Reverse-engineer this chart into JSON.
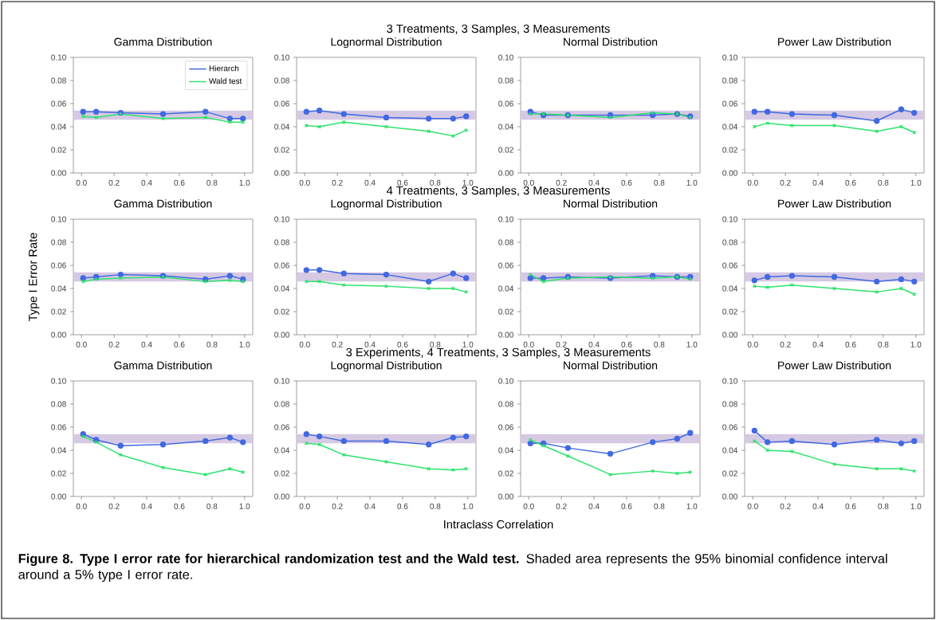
{
  "chart_data": [
    {
      "type": "other",
      "title": "3 Treatments, 3 Samples, 3 Measurements"
    },
    {
      "type": "line",
      "title": "Gamma Distribution",
      "legend": "top right",
      "x": [
        0.01,
        0.09,
        0.24,
        0.5,
        0.76,
        0.91,
        0.99
      ],
      "xlim": [
        -0.05,
        1.05
      ],
      "ylim": [
        0,
        0.1
      ],
      "xticks": [
        {
          "value": 0,
          "label": "0.0"
        },
        {
          "value": 0.2,
          "label": "0.2"
        },
        {
          "value": 0.4,
          "label": "0.4"
        },
        {
          "value": 0.6,
          "label": "0.6"
        },
        {
          "value": 0.8,
          "label": "0.8"
        },
        {
          "value": 1,
          "label": "1.0"
        }
      ],
      "yticks": [
        {
          "value": 0,
          "label": "0.00"
        },
        {
          "value": 0.02,
          "label": "0.02"
        },
        {
          "value": 0.04,
          "label": "0.04"
        },
        {
          "value": 0.06,
          "label": "0.06"
        },
        {
          "value": 0.08,
          "label": "0.08"
        },
        {
          "value": 0.1,
          "label": "0.10"
        }
      ],
      "bands": [
        {
          "axis": "y",
          "from": 0.046,
          "to": 0.054,
          "color": "#d6c9e3"
        }
      ],
      "series": [
        {
          "name": "Hierarch",
          "color": "#4169e1",
          "marker": "circle",
          "values": [
            0.053,
            0.053,
            0.052,
            0.051,
            0.053,
            0.047,
            0.047
          ]
        },
        {
          "name": "Wald test",
          "color": "#2de36b",
          "marker": "cross",
          "values": [
            0.049,
            0.048,
            0.051,
            0.047,
            0.048,
            0.044,
            0.044
          ]
        }
      ]
    },
    {
      "type": "line",
      "title": "Lognormal Distribution",
      "x": [
        0.01,
        0.09,
        0.24,
        0.5,
        0.76,
        0.91,
        0.99
      ],
      "xlim": [
        -0.05,
        1.05
      ],
      "ylim": [
        0,
        0.1
      ],
      "xticks": [
        {
          "value": 0,
          "label": "0.0"
        },
        {
          "value": 0.2,
          "label": "0.2"
        },
        {
          "value": 0.4,
          "label": "0.4"
        },
        {
          "value": 0.6,
          "label": "0.6"
        },
        {
          "value": 0.8,
          "label": "0.8"
        },
        {
          "value": 1,
          "label": "1.0"
        }
      ],
      "yticks": [
        {
          "value": 0,
          "label": "0.00"
        },
        {
          "value": 0.02,
          "label": "0.02"
        },
        {
          "value": 0.04,
          "label": "0.04"
        },
        {
          "value": 0.06,
          "label": "0.06"
        },
        {
          "value": 0.08,
          "label": "0.08"
        },
        {
          "value": 0.1,
          "label": "0.10"
        }
      ],
      "bands": [
        {
          "axis": "y",
          "from": 0.046,
          "to": 0.054,
          "color": "#d6c9e3"
        }
      ],
      "series": [
        {
          "color": "#4169e1",
          "marker": "circle",
          "values": [
            0.053,
            0.054,
            0.051,
            0.048,
            0.047,
            0.047,
            0.049
          ]
        },
        {
          "color": "#2de36b",
          "marker": "cross",
          "values": [
            0.041,
            0.04,
            0.044,
            0.04,
            0.036,
            0.032,
            0.037
          ]
        }
      ]
    },
    {
      "type": "line",
      "title": "Normal Distribution",
      "x": [
        0.01,
        0.09,
        0.24,
        0.5,
        0.76,
        0.91,
        0.99
      ],
      "xlim": [
        -0.05,
        1.05
      ],
      "ylim": [
        0,
        0.1
      ],
      "xticks": [
        {
          "value": 0,
          "label": "0.0"
        },
        {
          "value": 0.2,
          "label": "0.2"
        },
        {
          "value": 0.4,
          "label": "0.4"
        },
        {
          "value": 0.6,
          "label": "0.6"
        },
        {
          "value": 0.8,
          "label": "0.8"
        },
        {
          "value": 1,
          "label": "1.0"
        }
      ],
      "yticks": [
        {
          "value": 0,
          "label": "0.00"
        },
        {
          "value": 0.02,
          "label": "0.02"
        },
        {
          "value": 0.04,
          "label": "0.04"
        },
        {
          "value": 0.06,
          "label": "0.06"
        },
        {
          "value": 0.08,
          "label": "0.08"
        },
        {
          "value": 0.1,
          "label": "0.10"
        }
      ],
      "bands": [
        {
          "axis": "y",
          "from": 0.046,
          "to": 0.054,
          "color": "#d6c9e3"
        }
      ],
      "series": [
        {
          "color": "#4169e1",
          "marker": "circle",
          "values": [
            0.053,
            0.05,
            0.05,
            0.05,
            0.05,
            0.051,
            0.049
          ]
        },
        {
          "color": "#2de36b",
          "marker": "cross",
          "values": [
            0.051,
            0.051,
            0.05,
            0.048,
            0.052,
            0.051,
            0.048
          ]
        }
      ]
    },
    {
      "type": "line",
      "title": "Power Law Distribution",
      "x": [
        0.01,
        0.09,
        0.24,
        0.5,
        0.76,
        0.91,
        0.99
      ],
      "xlim": [
        -0.05,
        1.05
      ],
      "ylim": [
        0,
        0.1
      ],
      "xticks": [
        {
          "value": 0,
          "label": "0.0"
        },
        {
          "value": 0.2,
          "label": "0.2"
        },
        {
          "value": 0.4,
          "label": "0.4"
        },
        {
          "value": 0.6,
          "label": "0.6"
        },
        {
          "value": 0.8,
          "label": "0.8"
        },
        {
          "value": 1,
          "label": "1.0"
        }
      ],
      "yticks": [
        {
          "value": 0,
          "label": "0.00"
        },
        {
          "value": 0.02,
          "label": "0.02"
        },
        {
          "value": 0.04,
          "label": "0.04"
        },
        {
          "value": 0.06,
          "label": "0.06"
        },
        {
          "value": 0.08,
          "label": "0.08"
        },
        {
          "value": 0.1,
          "label": "0.10"
        }
      ],
      "bands": [
        {
          "axis": "y",
          "from": 0.046,
          "to": 0.054,
          "color": "#d6c9e3"
        }
      ],
      "series": [
        {
          "color": "#4169e1",
          "marker": "circle",
          "values": [
            0.053,
            0.053,
            0.051,
            0.05,
            0.045,
            0.055,
            0.052
          ]
        },
        {
          "color": "#2de36b",
          "marker": "cross",
          "values": [
            0.04,
            0.043,
            0.041,
            0.041,
            0.036,
            0.04,
            0.035
          ]
        }
      ]
    },
    {
      "type": "other",
      "title": "4 Treatments, 3 Samples, 3 Measurements"
    },
    {
      "type": "line",
      "title": "Gamma Distribution",
      "ylabel": "Type I Error Rate",
      "x": [
        0.01,
        0.09,
        0.24,
        0.5,
        0.76,
        0.91,
        0.99
      ],
      "xlim": [
        -0.05,
        1.05
      ],
      "ylim": [
        0,
        0.1
      ],
      "xticks": [
        {
          "value": 0,
          "label": "0.0"
        },
        {
          "value": 0.2,
          "label": "0.2"
        },
        {
          "value": 0.4,
          "label": "0.4"
        },
        {
          "value": 0.6,
          "label": "0.6"
        },
        {
          "value": 0.8,
          "label": "0.8"
        },
        {
          "value": 1,
          "label": "1.0"
        }
      ],
      "yticks": [
        {
          "value": 0,
          "label": "0.00"
        },
        {
          "value": 0.02,
          "label": "0.02"
        },
        {
          "value": 0.04,
          "label": "0.04"
        },
        {
          "value": 0.06,
          "label": "0.06"
        },
        {
          "value": 0.08,
          "label": "0.08"
        },
        {
          "value": 0.1,
          "label": "0.10"
        }
      ],
      "bands": [
        {
          "axis": "y",
          "from": 0.046,
          "to": 0.054,
          "color": "#d6c9e3"
        }
      ],
      "series": [
        {
          "color": "#4169e1",
          "marker": "circle",
          "values": [
            0.049,
            0.05,
            0.052,
            0.051,
            0.048,
            0.051,
            0.048
          ]
        },
        {
          "color": "#2de36b",
          "marker": "cross",
          "values": [
            0.046,
            0.048,
            0.049,
            0.05,
            0.046,
            0.047,
            0.046
          ]
        }
      ]
    },
    {
      "type": "line",
      "title": "Lognormal Distribution",
      "x": [
        0.01,
        0.09,
        0.24,
        0.5,
        0.76,
        0.91,
        0.99
      ],
      "xlim": [
        -0.05,
        1.05
      ],
      "ylim": [
        0,
        0.1
      ],
      "xticks": [
        {
          "value": 0,
          "label": "0.0"
        },
        {
          "value": 0.2,
          "label": "0.2"
        },
        {
          "value": 0.4,
          "label": "0.4"
        },
        {
          "value": 0.6,
          "label": "0.6"
        },
        {
          "value": 0.8,
          "label": "0.8"
        },
        {
          "value": 1,
          "label": "1.0"
        }
      ],
      "yticks": [
        {
          "value": 0,
          "label": "0.00"
        },
        {
          "value": 0.02,
          "label": "0.02"
        },
        {
          "value": 0.04,
          "label": "0.04"
        },
        {
          "value": 0.06,
          "label": "0.06"
        },
        {
          "value": 0.08,
          "label": "0.08"
        },
        {
          "value": 0.1,
          "label": "0.10"
        }
      ],
      "bands": [
        {
          "axis": "y",
          "from": 0.046,
          "to": 0.054,
          "color": "#d6c9e3"
        }
      ],
      "series": [
        {
          "color": "#4169e1",
          "marker": "circle",
          "values": [
            0.056,
            0.056,
            0.053,
            0.052,
            0.046,
            0.053,
            0.049
          ]
        },
        {
          "color": "#2de36b",
          "marker": "cross",
          "values": [
            0.046,
            0.046,
            0.043,
            0.042,
            0.04,
            0.04,
            0.037
          ]
        }
      ]
    },
    {
      "type": "line",
      "title": "Normal Distribution",
      "x": [
        0.01,
        0.09,
        0.24,
        0.5,
        0.76,
        0.91,
        0.99
      ],
      "xlim": [
        -0.05,
        1.05
      ],
      "ylim": [
        0,
        0.1
      ],
      "xticks": [
        {
          "value": 0,
          "label": "0.0"
        },
        {
          "value": 0.2,
          "label": "0.2"
        },
        {
          "value": 0.4,
          "label": "0.4"
        },
        {
          "value": 0.6,
          "label": "0.6"
        },
        {
          "value": 0.8,
          "label": "0.8"
        },
        {
          "value": 1,
          "label": "1.0"
        }
      ],
      "yticks": [
        {
          "value": 0,
          "label": "0.00"
        },
        {
          "value": 0.02,
          "label": "0.02"
        },
        {
          "value": 0.04,
          "label": "0.04"
        },
        {
          "value": 0.06,
          "label": "0.06"
        },
        {
          "value": 0.08,
          "label": "0.08"
        },
        {
          "value": 0.1,
          "label": "0.10"
        }
      ],
      "bands": [
        {
          "axis": "y",
          "from": 0.046,
          "to": 0.054,
          "color": "#d6c9e3"
        }
      ],
      "series": [
        {
          "color": "#4169e1",
          "marker": "circle",
          "values": [
            0.049,
            0.049,
            0.05,
            0.049,
            0.051,
            0.05,
            0.05
          ]
        },
        {
          "color": "#2de36b",
          "marker": "cross",
          "values": [
            0.052,
            0.046,
            0.049,
            0.05,
            0.049,
            0.05,
            0.048
          ]
        }
      ]
    },
    {
      "type": "line",
      "title": "Power Law Distribution",
      "x": [
        0.01,
        0.09,
        0.24,
        0.5,
        0.76,
        0.91,
        0.99
      ],
      "xlim": [
        -0.05,
        1.05
      ],
      "ylim": [
        0,
        0.1
      ],
      "xticks": [
        {
          "value": 0,
          "label": "0.0"
        },
        {
          "value": 0.2,
          "label": "0.2"
        },
        {
          "value": 0.4,
          "label": "0.4"
        },
        {
          "value": 0.6,
          "label": "0.6"
        },
        {
          "value": 0.8,
          "label": "0.8"
        },
        {
          "value": 1,
          "label": "1.0"
        }
      ],
      "yticks": [
        {
          "value": 0,
          "label": "0.00"
        },
        {
          "value": 0.02,
          "label": "0.02"
        },
        {
          "value": 0.04,
          "label": "0.04"
        },
        {
          "value": 0.06,
          "label": "0.06"
        },
        {
          "value": 0.08,
          "label": "0.08"
        },
        {
          "value": 0.1,
          "label": "0.10"
        }
      ],
      "bands": [
        {
          "axis": "y",
          "from": 0.046,
          "to": 0.054,
          "color": "#d6c9e3"
        }
      ],
      "series": [
        {
          "color": "#4169e1",
          "marker": "circle",
          "values": [
            0.047,
            0.05,
            0.051,
            0.05,
            0.046,
            0.048,
            0.046
          ]
        },
        {
          "color": "#2de36b",
          "marker": "cross",
          "values": [
            0.042,
            0.041,
            0.043,
            0.04,
            0.037,
            0.04,
            0.035
          ]
        }
      ]
    },
    {
      "type": "other",
      "title": "3 Experiments, 4 Treatments, 3 Samples, 3 Measurements"
    },
    {
      "type": "line",
      "title": "Gamma Distribution",
      "x": [
        0.01,
        0.09,
        0.24,
        0.5,
        0.76,
        0.91,
        0.99
      ],
      "xlim": [
        -0.05,
        1.05
      ],
      "ylim": [
        0,
        0.1
      ],
      "xticks": [
        {
          "value": 0,
          "label": "0.0"
        },
        {
          "value": 0.2,
          "label": "0.2"
        },
        {
          "value": 0.4,
          "label": "0.4"
        },
        {
          "value": 0.6,
          "label": "0.6"
        },
        {
          "value": 0.8,
          "label": "0.8"
        },
        {
          "value": 1,
          "label": "1.0"
        }
      ],
      "yticks": [
        {
          "value": 0,
          "label": "0.00"
        },
        {
          "value": 0.02,
          "label": "0.02"
        },
        {
          "value": 0.04,
          "label": "0.04"
        },
        {
          "value": 0.06,
          "label": "0.06"
        },
        {
          "value": 0.08,
          "label": "0.08"
        },
        {
          "value": 0.1,
          "label": "0.10"
        }
      ],
      "bands": [
        {
          "axis": "y",
          "from": 0.046,
          "to": 0.054,
          "color": "#d6c9e3"
        }
      ],
      "series": [
        {
          "color": "#4169e1",
          "marker": "circle",
          "values": [
            0.054,
            0.049,
            0.044,
            0.045,
            0.048,
            0.051,
            0.047
          ]
        },
        {
          "color": "#2de36b",
          "marker": "cross",
          "values": [
            0.052,
            0.047,
            0.036,
            0.025,
            0.019,
            0.024,
            0.021
          ]
        }
      ]
    },
    {
      "type": "line",
      "title": "Lognormal Distribution",
      "xlabel": "Intraclass Correlation",
      "x": [
        0.01,
        0.09,
        0.24,
        0.5,
        0.76,
        0.91,
        0.99
      ],
      "xlim": [
        -0.05,
        1.05
      ],
      "ylim": [
        0,
        0.1
      ],
      "xticks": [
        {
          "value": 0,
          "label": "0.0"
        },
        {
          "value": 0.2,
          "label": "0.2"
        },
        {
          "value": 0.4,
          "label": "0.4"
        },
        {
          "value": 0.6,
          "label": "0.6"
        },
        {
          "value": 0.8,
          "label": "0.8"
        },
        {
          "value": 1,
          "label": "1.0"
        }
      ],
      "yticks": [
        {
          "value": 0,
          "label": "0.00"
        },
        {
          "value": 0.02,
          "label": "0.02"
        },
        {
          "value": 0.04,
          "label": "0.04"
        },
        {
          "value": 0.06,
          "label": "0.06"
        },
        {
          "value": 0.08,
          "label": "0.08"
        },
        {
          "value": 0.1,
          "label": "0.10"
        }
      ],
      "bands": [
        {
          "axis": "y",
          "from": 0.046,
          "to": 0.054,
          "color": "#d6c9e3"
        }
      ],
      "series": [
        {
          "color": "#4169e1",
          "marker": "circle",
          "values": [
            0.054,
            0.052,
            0.048,
            0.048,
            0.045,
            0.051,
            0.052
          ]
        },
        {
          "color": "#2de36b",
          "marker": "cross",
          "values": [
            0.046,
            0.045,
            0.036,
            0.03,
            0.024,
            0.023,
            0.024
          ]
        }
      ]
    },
    {
      "type": "line",
      "title": "Normal Distribution",
      "x": [
        0.01,
        0.09,
        0.24,
        0.5,
        0.76,
        0.91,
        0.99
      ],
      "xlim": [
        -0.05,
        1.05
      ],
      "ylim": [
        0,
        0.1
      ],
      "xticks": [
        {
          "value": 0,
          "label": "0.0"
        },
        {
          "value": 0.2,
          "label": "0.2"
        },
        {
          "value": 0.4,
          "label": "0.4"
        },
        {
          "value": 0.6,
          "label": "0.6"
        },
        {
          "value": 0.8,
          "label": "0.8"
        },
        {
          "value": 1,
          "label": "1.0"
        }
      ],
      "yticks": [
        {
          "value": 0,
          "label": "0.00"
        },
        {
          "value": 0.02,
          "label": "0.02"
        },
        {
          "value": 0.04,
          "label": "0.04"
        },
        {
          "value": 0.06,
          "label": "0.06"
        },
        {
          "value": 0.08,
          "label": "0.08"
        },
        {
          "value": 0.1,
          "label": "0.10"
        }
      ],
      "bands": [
        {
          "axis": "y",
          "from": 0.046,
          "to": 0.054,
          "color": "#d6c9e3"
        }
      ],
      "series": [
        {
          "color": "#4169e1",
          "marker": "circle",
          "values": [
            0.046,
            0.046,
            0.042,
            0.037,
            0.047,
            0.05,
            0.055
          ]
        },
        {
          "color": "#2de36b",
          "marker": "cross",
          "values": [
            0.049,
            0.044,
            0.035,
            0.019,
            0.022,
            0.02,
            0.021
          ]
        }
      ]
    },
    {
      "type": "line",
      "title": "Power Law Distribution",
      "annotations": [
        "**Figure 8. Type I error rate for hierarchical randomization test and the Wald test.** Shaded area represents the 95% binomial confidence interval around a 5% type I error rate."
      ],
      "x": [
        0.01,
        0.09,
        0.24,
        0.5,
        0.76,
        0.91,
        0.99
      ],
      "xlim": [
        -0.05,
        1.05
      ],
      "ylim": [
        0,
        0.1
      ],
      "xticks": [
        {
          "value": 0,
          "label": "0.0"
        },
        {
          "value": 0.2,
          "label": "0.2"
        },
        {
          "value": 0.4,
          "label": "0.4"
        },
        {
          "value": 0.6,
          "label": "0.6"
        },
        {
          "value": 0.8,
          "label": "0.8"
        },
        {
          "value": 1,
          "label": "1.0"
        }
      ],
      "yticks": [
        {
          "value": 0,
          "label": "0.00"
        },
        {
          "value": 0.02,
          "label": "0.02"
        },
        {
          "value": 0.04,
          "label": "0.04"
        },
        {
          "value": 0.06,
          "label": "0.06"
        },
        {
          "value": 0.08,
          "label": "0.08"
        },
        {
          "value": 0.1,
          "label": "0.10"
        }
      ],
      "bands": [
        {
          "axis": "y",
          "from": 0.046,
          "to": 0.054,
          "color": "#d6c9e3"
        }
      ],
      "series": [
        {
          "color": "#4169e1",
          "marker": "circle",
          "values": [
            0.057,
            0.047,
            0.048,
            0.045,
            0.049,
            0.046,
            0.048
          ]
        },
        {
          "color": "#2de36b",
          "marker": "cross",
          "values": [
            0.048,
            0.04,
            0.039,
            0.028,
            0.024,
            0.024,
            0.022
          ]
        }
      ]
    }
  ]
}
